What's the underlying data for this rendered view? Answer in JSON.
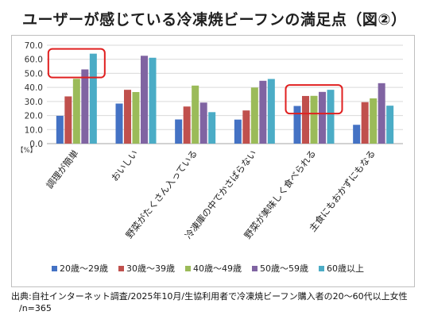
{
  "title": "ユーザーが感じている冷凍焼ビーフンの満足点（図②）",
  "chart_data": {
    "type": "bar",
    "unit_label": "【%】",
    "ylim": [
      0,
      70
    ],
    "yticks": [
      "0.0",
      "10.0",
      "20.0",
      "30.0",
      "40.0",
      "50.0",
      "60.0",
      "70.0"
    ],
    "grid": true,
    "legend_position": "bottom",
    "categories": [
      "調理が簡単",
      "おいしい",
      "野菜がたくさん入っている",
      "冷凍庫の中でかさばらない",
      "野菜が美味しく食べられる",
      "主食にもおかずにもなる"
    ],
    "series": [
      {
        "name": "20歳～29歳",
        "color": "#4472c4",
        "values": [
          19.8,
          28.5,
          17.2,
          17.1,
          26.8,
          13.4
        ]
      },
      {
        "name": "30歳～39歳",
        "color": "#c0504d",
        "values": [
          33.6,
          38.3,
          26.4,
          23.6,
          33.9,
          29.5
        ]
      },
      {
        "name": "40歳～49歳",
        "color": "#9bbb59",
        "values": [
          46.1,
          36.7,
          41.3,
          39.9,
          34.0,
          32.2
        ]
      },
      {
        "name": "50歳～59歳",
        "color": "#8064a2",
        "values": [
          52.8,
          62.5,
          29.2,
          44.7,
          36.8,
          43.0
        ]
      },
      {
        "name": "60歳以上",
        "color": "#4bacc6",
        "values": [
          64.0,
          61.1,
          22.4,
          46.0,
          38.3,
          27.0
        ]
      }
    ],
    "highlight_color": "#e02020",
    "highlighted_categories": [
      "調理が簡単",
      "野菜が美味しく食べられる"
    ]
  },
  "source": {
    "line1": "出典:自社インターネット調査/2025年10月/生協利用者で冷凍焼ビーフン購入者の20～60代以上女性",
    "line2": "/n=365"
  }
}
